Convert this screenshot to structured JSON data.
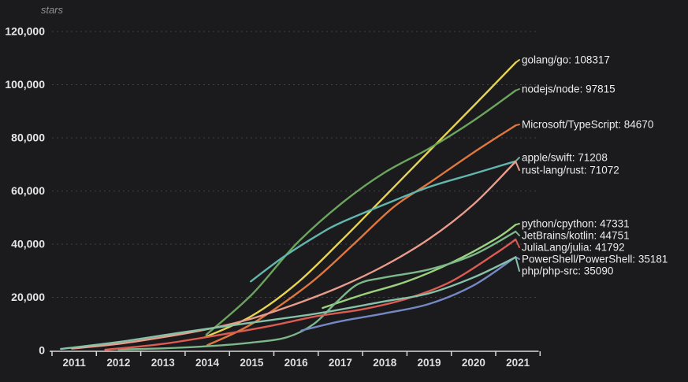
{
  "chart_data": {
    "type": "line",
    "title": "stars",
    "ylabel": "stars",
    "xlabel": "",
    "ylim": [
      0,
      120000
    ],
    "xlim": [
      2011,
      2022
    ],
    "grid": "horizontal-dashed",
    "legend_position": "labels-at-right-edge",
    "y_ticks": [
      {
        "value": 0,
        "label": "0"
      },
      {
        "value": 20000,
        "label": "20,000"
      },
      {
        "value": 40000,
        "label": "40,000"
      },
      {
        "value": 60000,
        "label": "60,000"
      },
      {
        "value": 80000,
        "label": "80,000"
      },
      {
        "value": 100000,
        "label": "100,000"
      },
      {
        "value": 120000,
        "label": "120,000"
      }
    ],
    "x_tick_years": [
      "2011",
      "2012",
      "2013",
      "2014",
      "2015",
      "2016",
      "2017",
      "2018",
      "2019",
      "2020",
      "2021"
    ],
    "series": [
      {
        "name": "golang/go",
        "stars": 108317,
        "label": "golang/go: 108317",
        "color": "#e7d453",
        "label_y": 76,
        "points": [
          [
            2014.45,
            5000
          ],
          [
            2015.5,
            13000
          ],
          [
            2016.5,
            25000
          ],
          [
            2017.5,
            41000
          ],
          [
            2018.5,
            58000
          ],
          [
            2019.5,
            75000
          ],
          [
            2020.5,
            92000
          ],
          [
            2021.45,
            108317
          ]
        ]
      },
      {
        "name": "nodejs/node",
        "stars": 97815,
        "label": "nodejs/node: 97815",
        "color": "#6ba55e",
        "label_y": 113,
        "points": [
          [
            2014.48,
            6000
          ],
          [
            2015.5,
            21000
          ],
          [
            2016.5,
            40000
          ],
          [
            2017.5,
            55000
          ],
          [
            2018.5,
            67000
          ],
          [
            2019.5,
            76000
          ],
          [
            2020.5,
            86500
          ],
          [
            2021.45,
            97815
          ]
        ]
      },
      {
        "name": "Microsoft/TypeScript",
        "stars": 84670,
        "label": "Microsoft/TypeScript: 84670",
        "color": "#e0773f",
        "label_y": 158,
        "points": [
          [
            2014.5,
            2000
          ],
          [
            2015.5,
            10000
          ],
          [
            2016.8,
            25000
          ],
          [
            2017.8,
            40000
          ],
          [
            2018.7,
            54000
          ],
          [
            2019.5,
            63000
          ],
          [
            2020.5,
            74500
          ],
          [
            2021.45,
            84670
          ]
        ]
      },
      {
        "name": "apple/swift",
        "stars": 71208,
        "label": "apple/swift: 71208",
        "color": "#63b6ae",
        "label_y": 200,
        "points": [
          [
            2015.48,
            26000
          ],
          [
            2016.2,
            35000
          ],
          [
            2017.0,
            43500
          ],
          [
            2017.5,
            48000
          ],
          [
            2018.5,
            55000
          ],
          [
            2019.5,
            61500
          ],
          [
            2020.5,
            66500
          ],
          [
            2021.45,
            71208
          ]
        ]
      },
      {
        "name": "rust-lang/rust",
        "stars": 71072,
        "label": "rust-lang/rust: 71072",
        "color": "#e99b8c",
        "label_y": 216,
        "points": [
          [
            2011.45,
            700
          ],
          [
            2012.5,
            2500
          ],
          [
            2013.5,
            5000
          ],
          [
            2014.5,
            8000
          ],
          [
            2015.5,
            12000
          ],
          [
            2016.5,
            17500
          ],
          [
            2017.5,
            24000
          ],
          [
            2018.5,
            32000
          ],
          [
            2019.5,
            42000
          ],
          [
            2020.5,
            55000
          ],
          [
            2021.45,
            71072
          ]
        ]
      },
      {
        "name": "python/cpython",
        "stars": 47331,
        "label": "python/cpython: 47331",
        "color": "#9bd17e",
        "label_y": 284,
        "points": [
          [
            2017.1,
            16000
          ],
          [
            2018.0,
            21000
          ],
          [
            2019.0,
            26000
          ],
          [
            2020.0,
            33000
          ],
          [
            2021.0,
            42000
          ],
          [
            2021.45,
            47331
          ]
        ]
      },
      {
        "name": "JetBrains/kotlin",
        "stars": 44751,
        "label": "JetBrains/kotlin: 44751",
        "color": "#7cb88b",
        "label_y": 299,
        "points": [
          [
            2012.5,
            400
          ],
          [
            2013.5,
            800
          ],
          [
            2014.5,
            1600
          ],
          [
            2015.5,
            3000
          ],
          [
            2016.3,
            5000
          ],
          [
            2016.9,
            10000
          ],
          [
            2017.4,
            18000
          ],
          [
            2017.9,
            25000
          ],
          [
            2018.5,
            27500
          ],
          [
            2019.5,
            30500
          ],
          [
            2020.5,
            36000
          ],
          [
            2021.45,
            44751
          ]
        ]
      },
      {
        "name": "JuliaLang/julia",
        "stars": 41792,
        "label": "JuliaLang/julia: 41792",
        "color": "#dc5b52",
        "label_y": 314,
        "points": [
          [
            2012.2,
            300
          ],
          [
            2013.5,
            2500
          ],
          [
            2015.0,
            6500
          ],
          [
            2016.0,
            9500
          ],
          [
            2017.0,
            13000
          ],
          [
            2018.0,
            15500
          ],
          [
            2019.0,
            19500
          ],
          [
            2020.0,
            26000
          ],
          [
            2021.0,
            36500
          ],
          [
            2021.45,
            41792
          ]
        ]
      },
      {
        "name": "PowerShell/PowerShell",
        "stars": 35181,
        "label": "PowerShell/PowerShell: 35181",
        "color": "#7488c3",
        "label_y": 329,
        "points": [
          [
            2016.62,
            7500
          ],
          [
            2017.5,
            11000
          ],
          [
            2018.5,
            14000
          ],
          [
            2019.5,
            17500
          ],
          [
            2020.5,
            24500
          ],
          [
            2021.45,
            35181
          ]
        ]
      },
      {
        "name": "php/php-src",
        "stars": 35090,
        "label": "php/php-src: 35090",
        "color": "#85c2a8",
        "label_y": 344,
        "points": [
          [
            2011.2,
            600
          ],
          [
            2012.5,
            3200
          ],
          [
            2014.0,
            7000
          ],
          [
            2015.5,
            10500
          ],
          [
            2017.0,
            14000
          ],
          [
            2018.5,
            18500
          ],
          [
            2019.5,
            21500
          ],
          [
            2020.5,
            27500
          ],
          [
            2021.45,
            35090
          ]
        ]
      }
    ]
  }
}
